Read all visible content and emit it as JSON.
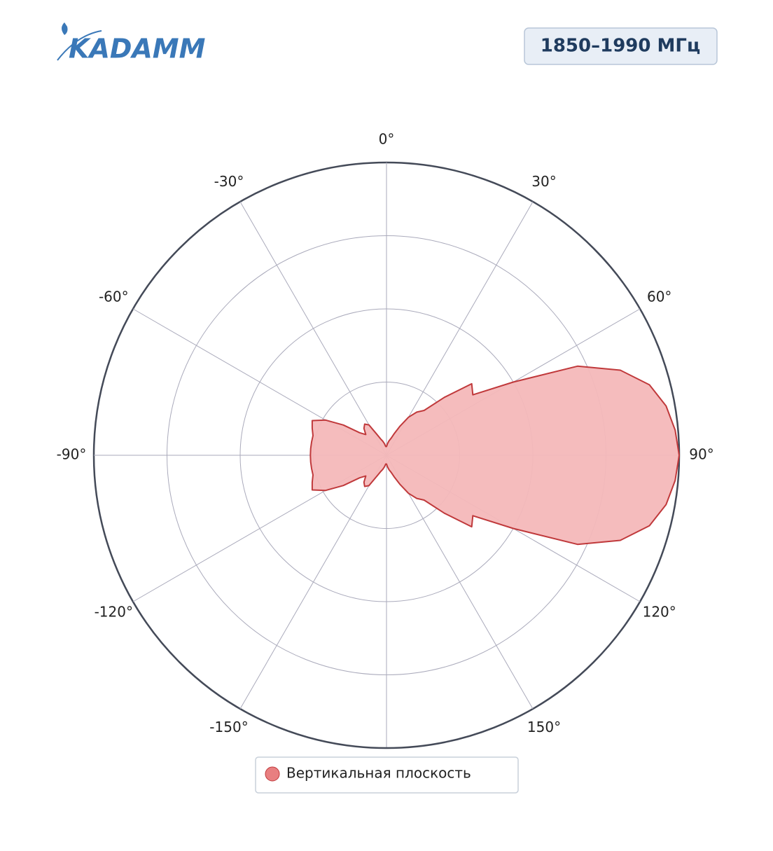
{
  "logo": "KADAMM",
  "badge": "1850–1990 МГц",
  "chart_data": {
    "type": "polar",
    "x": [
      0,
      5,
      10,
      15,
      20,
      25,
      30,
      35,
      40,
      45,
      50,
      55,
      60,
      65,
      70,
      75,
      80,
      85,
      90,
      95,
      100,
      105,
      110,
      115,
      120,
      125,
      130,
      135,
      140,
      145,
      150,
      155,
      160,
      165,
      170,
      175,
      180,
      185,
      190,
      195,
      200,
      205,
      210,
      215,
      220,
      225,
      230,
      235,
      240,
      245,
      250,
      255,
      260,
      265,
      270,
      275,
      280,
      285,
      290,
      295,
      300,
      305,
      310,
      315,
      320,
      325,
      330,
      335,
      340,
      345,
      350,
      355
    ],
    "series": [
      {
        "name": "Вертикальная плоскость",
        "color": "#f4b8b9",
        "edge": "#c0393b",
        "marker": "#e87f80",
        "values": [
          0.03,
          0.04,
          0.05,
          0.06,
          0.08,
          0.11,
          0.15,
          0.18,
          0.2,
          0.28,
          0.38,
          0.36,
          0.5,
          0.72,
          0.85,
          0.93,
          0.97,
          0.99,
          1.0,
          0.99,
          0.97,
          0.93,
          0.85,
          0.72,
          0.5,
          0.36,
          0.38,
          0.28,
          0.2,
          0.18,
          0.15,
          0.11,
          0.08,
          0.06,
          0.05,
          0.04,
          0.03,
          0.03,
          0.04,
          0.05,
          0.06,
          0.08,
          0.12,
          0.13,
          0.12,
          0.1,
          0.12,
          0.18,
          0.24,
          0.28,
          0.27,
          0.26,
          0.26,
          0.26,
          0.26,
          0.26,
          0.26,
          0.26,
          0.27,
          0.28,
          0.24,
          0.18,
          0.12,
          0.1,
          0.12,
          0.13,
          0.12,
          0.08,
          0.06,
          0.05,
          0.04,
          0.03
        ]
      }
    ],
    "rlim": [
      0,
      1
    ],
    "rticks": [
      0.25,
      0.5,
      0.75,
      1
    ],
    "xticks": [
      {
        "value": 0,
        "label": "0°"
      },
      {
        "value": 30,
        "label": "30°"
      },
      {
        "value": 60,
        "label": "60°"
      },
      {
        "value": 90,
        "label": "90°"
      },
      {
        "value": 120,
        "label": "120°"
      },
      {
        "value": 150,
        "label": "150°"
      },
      {
        "value": -150,
        "label": "-150°"
      },
      {
        "value": -120,
        "label": "-120°"
      },
      {
        "value": -90,
        "label": "-90°"
      },
      {
        "value": -60,
        "label": "-60°"
      },
      {
        "value": -30,
        "label": "-30°"
      }
    ],
    "grid": true
  }
}
